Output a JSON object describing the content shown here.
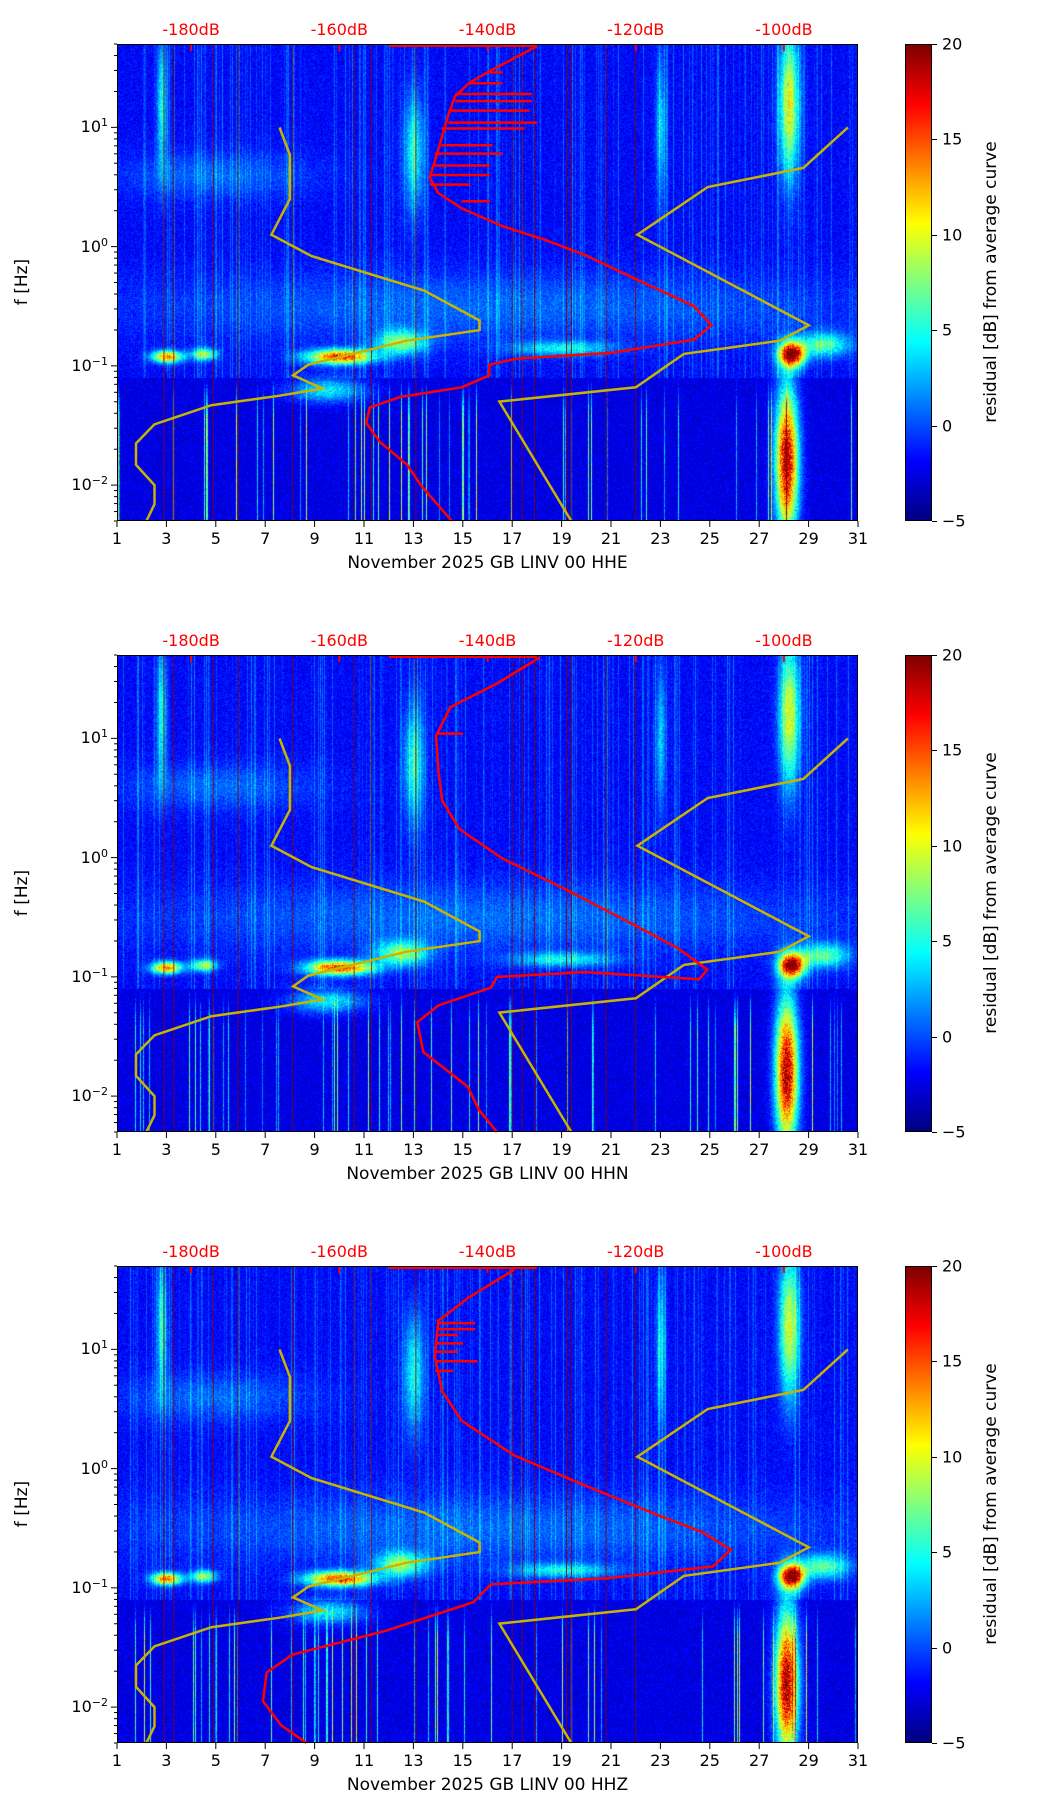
{
  "chart_data": {
    "type": "heatmap",
    "x_ticks": [
      "1",
      "3",
      "5",
      "7",
      "9",
      "11",
      "13",
      "15",
      "17",
      "19",
      "21",
      "23",
      "25",
      "27",
      "29",
      "31"
    ],
    "xlim": [
      1,
      31
    ],
    "ylabel": "f [Hz]",
    "yscale": "log",
    "ylim": [
      0.005,
      50
    ],
    "y_ticks": [
      {
        "base": "10",
        "exp": "1",
        "value": 10
      },
      {
        "base": "10",
        "exp": "0",
        "value": 1
      },
      {
        "base": "10",
        "exp": "−1",
        "value": 0.1
      },
      {
        "base": "10",
        "exp": "−2",
        "value": 0.01
      }
    ],
    "top_axis_labels": [
      {
        "label": "-180dB",
        "db": -180
      },
      {
        "label": "-160dB",
        "db": -160
      },
      {
        "label": "-140dB",
        "db": -140
      },
      {
        "label": "-120dB",
        "db": -120
      },
      {
        "label": "-100dB",
        "db": -100
      }
    ],
    "top_axis_db_range": [
      -190,
      -90
    ],
    "colorbar": {
      "label": "residual [dB] from average curve",
      "ticks": [
        "20",
        "15",
        "10",
        "5",
        "0",
        "−5"
      ],
      "range": [
        -5,
        20
      ],
      "colormap": "jet"
    },
    "colors": {
      "psd_curve": "#ff0000",
      "noise_model": "#c8b400",
      "event_lines": "#8b0000"
    },
    "noise_model_low": [
      [
        7.58,
        1.0
      ],
      [
        8.0,
        0.77
      ],
      [
        8.0,
        0.4
      ],
      [
        7.25,
        0.1
      ],
      [
        8.88,
        -0.08
      ],
      [
        13.44,
        -0.37
      ],
      [
        15.68,
        -0.62
      ],
      [
        15.68,
        -0.7
      ],
      [
        12.7,
        -0.79
      ],
      [
        8.74,
        -0.99
      ],
      [
        8.13,
        -1.08
      ],
      [
        9.32,
        -1.19
      ],
      [
        7.58,
        -1.25
      ],
      [
        4.82,
        -1.33
      ],
      [
        2.52,
        -1.49
      ],
      [
        1.77,
        -1.65
      ],
      [
        1.77,
        -1.83
      ],
      [
        2.52,
        -2.0
      ],
      [
        2.52,
        -2.16
      ],
      [
        2.19,
        -2.3
      ]
    ],
    "noise_model_high": [
      [
        30.59,
        1.0
      ],
      [
        28.79,
        0.66
      ],
      [
        24.92,
        0.5
      ],
      [
        22.07,
        0.1
      ],
      [
        29.01,
        -0.66
      ],
      [
        27.82,
        -0.79
      ],
      [
        23.95,
        -0.9
      ],
      [
        22.01,
        -1.18
      ],
      [
        16.48,
        -1.3
      ],
      [
        19.39,
        -2.3
      ]
    ],
    "event_days": [
      2.9,
      3.3,
      4.9,
      5.9,
      8.1,
      10.6,
      11.3,
      13.1,
      17.0,
      17.4,
      17.9,
      19.2,
      19.4,
      20.8,
      22.0
    ],
    "panels": [
      {
        "xlabel": "November 2025 GB LINV 00 HHE",
        "psd_curve": [
          [
            18.0,
            1.68
          ],
          [
            17.18,
            1.59
          ],
          [
            16.07,
            1.47
          ],
          [
            15.24,
            1.37
          ],
          [
            14.69,
            1.26
          ],
          [
            14.41,
            1.1
          ],
          [
            14.13,
            0.9
          ],
          [
            13.86,
            0.71
          ],
          [
            13.66,
            0.58
          ],
          [
            14.0,
            0.45
          ],
          [
            14.96,
            0.32
          ],
          [
            16.62,
            0.17
          ],
          [
            18.28,
            0.06
          ],
          [
            19.94,
            -0.07
          ],
          [
            21.46,
            -0.22
          ],
          [
            22.71,
            -0.34
          ],
          [
            24.36,
            -0.5
          ],
          [
            25.06,
            -0.66
          ],
          [
            24.36,
            -0.78
          ],
          [
            21.05,
            -0.89
          ],
          [
            17.18,
            -0.94
          ],
          [
            16.07,
            -0.99
          ],
          [
            16.07,
            -1.08
          ],
          [
            14.96,
            -1.18
          ],
          [
            12.47,
            -1.26
          ],
          [
            11.23,
            -1.35
          ],
          [
            11.09,
            -1.48
          ],
          [
            11.65,
            -1.64
          ],
          [
            12.75,
            -1.83
          ],
          [
            13.3,
            -2.0
          ],
          [
            14.55,
            -2.3
          ]
        ],
        "psd_spikes": [
          [
            16.6,
            1.46
          ],
          [
            16.6,
            1.37
          ],
          [
            17.8,
            1.28
          ],
          [
            17.8,
            1.22
          ],
          [
            17.7,
            1.14
          ],
          [
            18.0,
            1.04
          ],
          [
            17.5,
            0.99
          ],
          [
            16.2,
            0.85
          ],
          [
            16.6,
            0.78
          ],
          [
            16.1,
            0.68
          ],
          [
            16.1,
            0.6
          ],
          [
            15.3,
            0.52
          ],
          [
            16.1,
            0.38
          ]
        ]
      },
      {
        "xlabel": "November 2025 GB LINV 00 HHN",
        "psd_curve": [
          [
            18.13,
            1.68
          ],
          [
            16.38,
            1.46
          ],
          [
            14.49,
            1.26
          ],
          [
            13.92,
            1.02
          ],
          [
            14.01,
            0.73
          ],
          [
            14.16,
            0.48
          ],
          [
            14.86,
            0.24
          ],
          [
            16.62,
            -0.01
          ],
          [
            19.0,
            -0.25
          ],
          [
            21.8,
            -0.55
          ],
          [
            23.71,
            -0.76
          ],
          [
            24.9,
            -0.94
          ],
          [
            24.57,
            -1.02
          ],
          [
            19.93,
            -0.96
          ],
          [
            16.38,
            -1.0
          ],
          [
            16.14,
            -1.09
          ],
          [
            14.01,
            -1.24
          ],
          [
            13.16,
            -1.38
          ],
          [
            13.4,
            -1.63
          ],
          [
            15.2,
            -1.92
          ],
          [
            15.67,
            -2.12
          ],
          [
            16.38,
            -2.3
          ]
        ],
        "psd_spikes": [
          [
            15.0,
            1.04
          ]
        ]
      },
      {
        "xlabel": "November 2025 GB LINV 00 HHZ",
        "psd_curve": [
          [
            17.09,
            1.67
          ],
          [
            15.2,
            1.43
          ],
          [
            14.01,
            1.24
          ],
          [
            13.87,
            0.94
          ],
          [
            14.16,
            0.65
          ],
          [
            14.96,
            0.4
          ],
          [
            17.09,
            0.11
          ],
          [
            19.93,
            -0.14
          ],
          [
            22.77,
            -0.38
          ],
          [
            24.66,
            -0.53
          ],
          [
            25.85,
            -0.68
          ],
          [
            25.13,
            -0.82
          ],
          [
            20.87,
            -0.92
          ],
          [
            16.14,
            -0.97
          ],
          [
            15.43,
            -1.12
          ],
          [
            11.88,
            -1.36
          ],
          [
            8.1,
            -1.56
          ],
          [
            7.06,
            -1.71
          ],
          [
            6.91,
            -1.95
          ],
          [
            7.63,
            -2.15
          ],
          [
            8.67,
            -2.3
          ]
        ],
        "psd_spikes": [
          [
            15.5,
            1.22
          ],
          [
            15.5,
            1.17
          ],
          [
            14.8,
            1.12
          ],
          [
            15.0,
            1.05
          ],
          [
            14.8,
            0.98
          ],
          [
            15.6,
            0.9
          ],
          [
            14.6,
            0.82
          ]
        ]
      }
    ],
    "hotspots": [
      {
        "day": 3,
        "logf": -0.92,
        "sd": 0.6,
        "sf": 0.05,
        "v": 18
      },
      {
        "day": 4.5,
        "logf": -0.9,
        "sd": 0.5,
        "sf": 0.05,
        "v": 12
      },
      {
        "day": 10,
        "logf": -0.92,
        "sd": 1.3,
        "sf": 0.06,
        "v": 21
      },
      {
        "day": 12.5,
        "logf": -0.8,
        "sd": 1.0,
        "sf": 0.1,
        "v": 11
      },
      {
        "day": 9.5,
        "logf": -1.2,
        "sd": 1.5,
        "sf": 0.1,
        "v": 8
      },
      {
        "day": 19,
        "logf": -0.85,
        "sd": 2,
        "sf": 0.06,
        "v": 7
      },
      {
        "day": 28.3,
        "logf": -0.9,
        "sd": 0.5,
        "sf": 0.1,
        "v": 26
      },
      {
        "day": 28.1,
        "logf": -1.8,
        "sd": 0.45,
        "sf": 0.6,
        "v": 26
      },
      {
        "day": 28.2,
        "logf": 1.2,
        "sd": 0.4,
        "sf": 0.6,
        "v": 14
      },
      {
        "day": 2.8,
        "logf": 1.2,
        "sd": 0.2,
        "sf": 0.6,
        "v": 8
      },
      {
        "day": 13,
        "logf": 0.8,
        "sd": 0.4,
        "sf": 0.5,
        "v": 8
      },
      {
        "day": 23,
        "logf": 1.0,
        "sd": 0.2,
        "sf": 0.6,
        "v": 6
      },
      {
        "day": 29.6,
        "logf": -0.82,
        "sd": 1,
        "sf": 0.1,
        "v": 10
      },
      {
        "day": 16,
        "logf": -0.5,
        "sd": 15,
        "sf": 0.3,
        "v": 3
      },
      {
        "day": 5,
        "logf": 0.6,
        "sd": 4,
        "sf": 0.2,
        "v": 3
      }
    ]
  }
}
